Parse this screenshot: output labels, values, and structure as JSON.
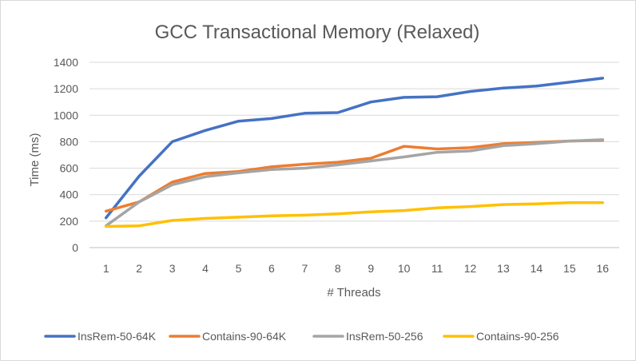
{
  "chart_data": {
    "type": "line",
    "title": "GCC Transactional Memory (Relaxed)",
    "xlabel": "# Threads",
    "ylabel": "Time (ms)",
    "categories": [
      "1",
      "2",
      "3",
      "4",
      "5",
      "6",
      "7",
      "8",
      "9",
      "10",
      "11",
      "12",
      "13",
      "14",
      "15",
      "16"
    ],
    "ylim": [
      0,
      1400
    ],
    "yticks": [
      "0",
      "200",
      "400",
      "600",
      "800",
      "1000",
      "1200",
      "1400"
    ],
    "grid": true,
    "legend_position": "bottom",
    "series": [
      {
        "name": "InsRem-50-64K",
        "color": "#4472c4",
        "values": [
          225,
          540,
          800,
          885,
          955,
          975,
          1015,
          1020,
          1100,
          1135,
          1140,
          1180,
          1205,
          1220,
          1250,
          1280
        ]
      },
      {
        "name": "Contains-90-64K",
        "color": "#ed7d31",
        "values": [
          275,
          345,
          495,
          560,
          575,
          610,
          630,
          645,
          675,
          765,
          745,
          755,
          785,
          795,
          805,
          810
        ]
      },
      {
        "name": "InsRem-50-256",
        "color": "#a5a5a5",
        "values": [
          165,
          345,
          475,
          535,
          565,
          590,
          600,
          625,
          655,
          685,
          720,
          730,
          770,
          785,
          805,
          815
        ]
      },
      {
        "name": "Contains-90-256",
        "color": "#ffc000",
        "values": [
          160,
          165,
          205,
          220,
          230,
          240,
          245,
          255,
          270,
          280,
          300,
          310,
          325,
          330,
          340,
          340
        ]
      }
    ]
  }
}
